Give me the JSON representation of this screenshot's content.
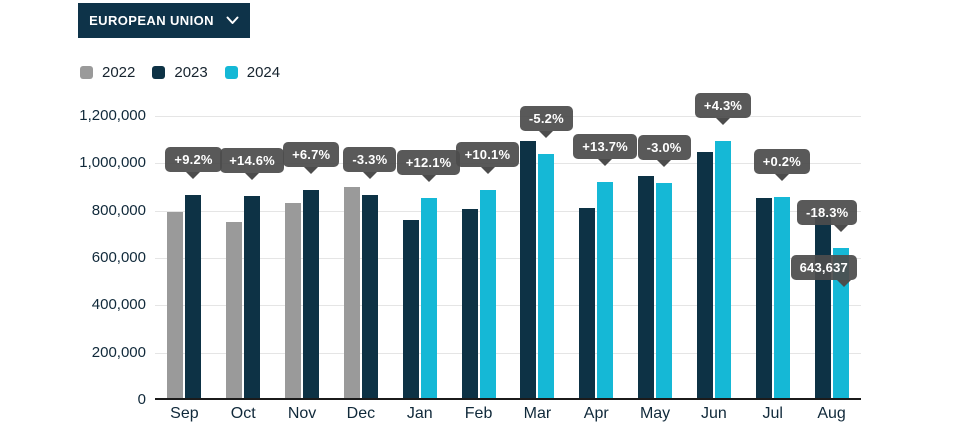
{
  "header": {
    "dropdown_label": "EUROPEAN UNION"
  },
  "legend": [
    {
      "label": "2022",
      "color": "#9a9a9a"
    },
    {
      "label": "2023",
      "color": "#0d3245"
    },
    {
      "label": "2024",
      "color": "#15b8d6"
    }
  ],
  "colors": {
    "background": "#ffffff",
    "dropdown_bg": "#0e3349",
    "grid": "#e5e5e5",
    "axis": "#1b1b1b",
    "text": "#10293a",
    "tooltip_bg": "#4c4c4c"
  },
  "chart_data": {
    "type": "bar",
    "title": "",
    "xlabel": "",
    "ylabel": "",
    "categories": [
      "Sep",
      "Oct",
      "Nov",
      "Dec",
      "Jan",
      "Feb",
      "Mar",
      "Apr",
      "May",
      "Jun",
      "Jul",
      "Aug"
    ],
    "series": [
      {
        "name": "2022",
        "color": "#9a9a9a",
        "values": [
          795000,
          753000,
          831000,
          898000,
          null,
          null,
          null,
          null,
          null,
          null,
          null,
          null
        ]
      },
      {
        "name": "2023",
        "color": "#0d3245",
        "values": [
          868000,
          863000,
          887000,
          868000,
          760000,
          807000,
          1095000,
          810000,
          945000,
          1050000,
          854000,
          788000
        ]
      },
      {
        "name": "2024",
        "color": "#15b8d6",
        "values": [
          null,
          null,
          null,
          null,
          852000,
          888000,
          1038000,
          921000,
          917000,
          1095000,
          856000,
          643637
        ]
      }
    ],
    "ylim": [
      0,
      1200000
    ],
    "y_ticks": [
      "0",
      "200,000",
      "400,000",
      "600,000",
      "800,000",
      "1,000,000",
      "1,200,000"
    ],
    "grid": true,
    "legend_position": "top-left",
    "tooltips": [
      {
        "category": "Sep",
        "series": "2023",
        "label": "+9.2%"
      },
      {
        "category": "Oct",
        "series": "2023",
        "label": "+14.6%"
      },
      {
        "category": "Nov",
        "series": "2023",
        "label": "+6.7%"
      },
      {
        "category": "Dec",
        "series": "2023",
        "label": "-3.3%"
      },
      {
        "category": "Jan",
        "series": "2024",
        "label": "+12.1%"
      },
      {
        "category": "Feb",
        "series": "2024",
        "label": "+10.1%"
      },
      {
        "category": "Mar",
        "series": "2024",
        "label": "-5.2%"
      },
      {
        "category": "Apr",
        "series": "2024",
        "label": "+13.7%"
      },
      {
        "category": "May",
        "series": "2024",
        "label": "-3.0%"
      },
      {
        "category": "Jun",
        "series": "2024",
        "label": "+4.3%"
      },
      {
        "category": "Jul",
        "series": "2024",
        "label": "+0.2%"
      },
      {
        "category": "Aug",
        "series": "2024",
        "label": "-18.3%"
      }
    ],
    "value_label": {
      "category": "Aug",
      "series": "2024",
      "text": "643,637"
    }
  }
}
